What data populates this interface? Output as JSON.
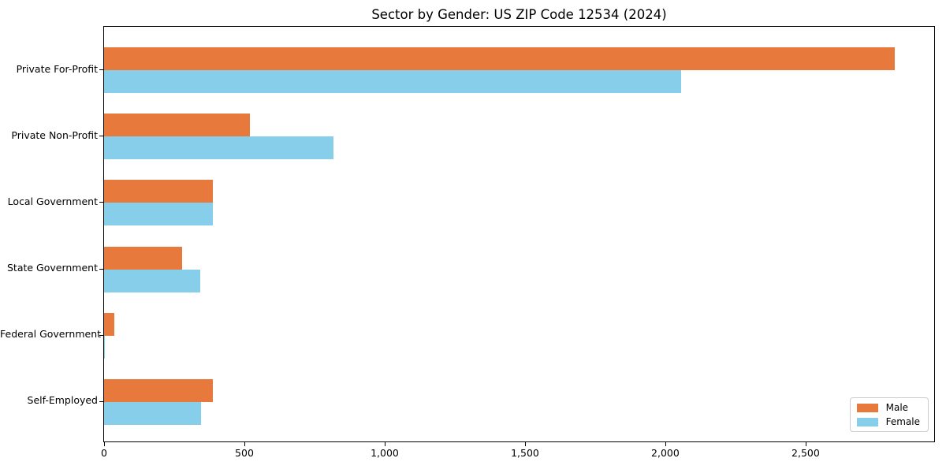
{
  "chart_data": {
    "type": "bar",
    "orientation": "horizontal",
    "title": "Sector by Gender: US ZIP Code 12534 (2024)",
    "categories": [
      "Private For-Profit",
      "Private Non-Profit",
      "Local Government",
      "State Government",
      "Federal Government",
      "Self-Employed"
    ],
    "series": [
      {
        "name": "Male",
        "color": "#e8793c",
        "values": [
          2817,
          521,
          388,
          278,
          36,
          388
        ]
      },
      {
        "name": "Female",
        "color": "#87ceeb",
        "values": [
          2057,
          817,
          387,
          343,
          4,
          346
        ]
      }
    ],
    "xlabel": "",
    "ylabel": "",
    "xlim": [
      0,
      2958
    ],
    "x_ticks": [
      {
        "value": 0,
        "label": "0"
      },
      {
        "value": 500,
        "label": "500"
      },
      {
        "value": 1000,
        "label": "1,000"
      },
      {
        "value": 1500,
        "label": "1,500"
      },
      {
        "value": 2000,
        "label": "2,000"
      },
      {
        "value": 2500,
        "label": "2,500"
      }
    ],
    "legend": {
      "position": "lower right"
    },
    "grid": false
  }
}
